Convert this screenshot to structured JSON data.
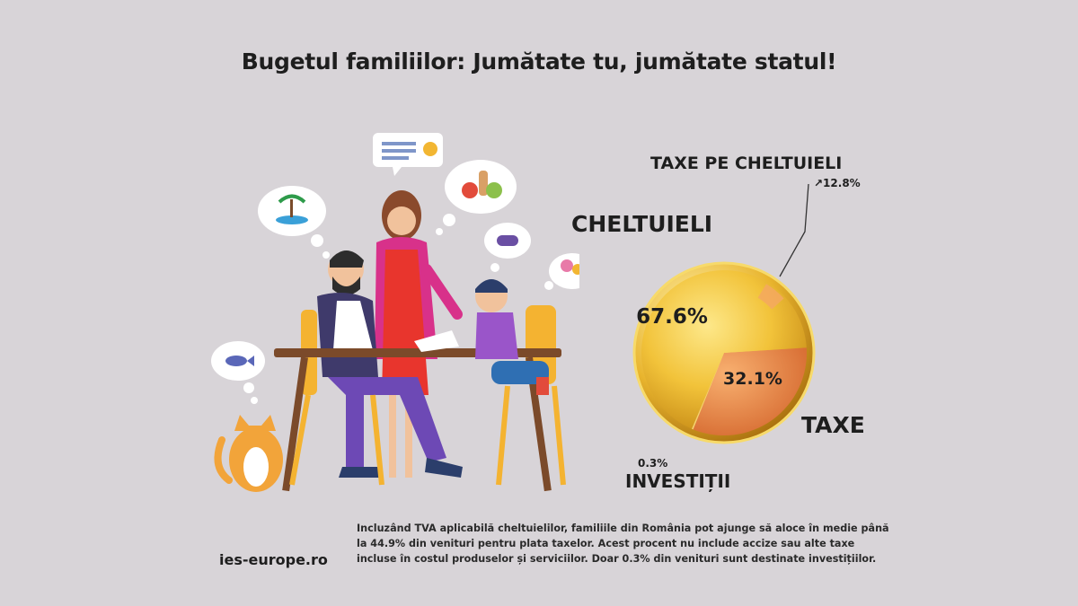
{
  "title": "Bugetul familiilor: Jumătate tu, jumătate statul!",
  "chart_data": {
    "type": "pie",
    "slices": [
      {
        "label": "CHELTUIELI",
        "value": 67.6,
        "value_label": "67.6%",
        "color": "#f0c43c"
      },
      {
        "label": "TAXE",
        "value": 32.1,
        "value_label": "32.1%",
        "color": "#ee8a4e"
      },
      {
        "label": "INVESTIȚII",
        "value": 0.3,
        "value_label": "0.3%",
        "color": "#f5d070"
      }
    ],
    "sub_annotation": {
      "label": "TAXE PE CHELTUIELI",
      "value": 12.8,
      "value_label": "↗12.8%",
      "color": "#f4a860"
    },
    "legend": "labels placed around the pie"
  },
  "footer": {
    "site": "ies-europe.ro",
    "note": "Incluzând TVA aplicabilă cheltuielilor, familiile din România pot ajunge să aloce în medie până la 44.9% din venituri pentru plata taxelor. Acest procent nu include accize sau alte taxe incluse în costul produselor și serviciilor. Doar 0.3% din venituri sunt destinate investițiilor."
  }
}
